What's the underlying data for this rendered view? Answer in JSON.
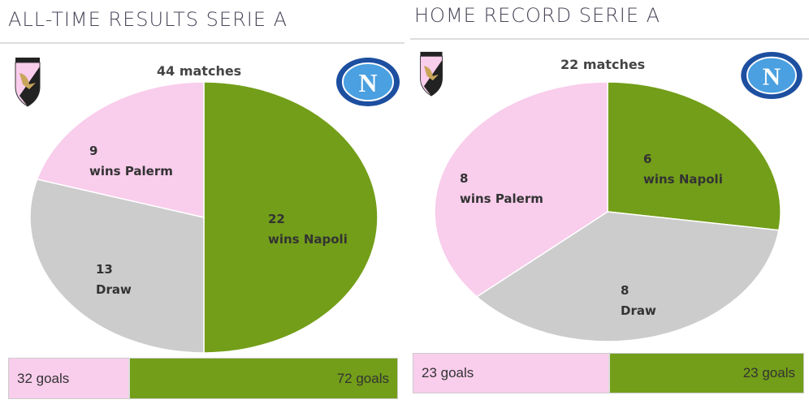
{
  "colors": {
    "palermo": "#f9cdec",
    "napoli": "#739e19",
    "draw": "#cccccc"
  },
  "chart_data": [
    {
      "type": "pie",
      "title": "ALL-TIME RESULTS SERIE A",
      "total_label": "44 matches",
      "slices": [
        {
          "label": "wins Napoli",
          "value": 22
        },
        {
          "label": "Draw",
          "value": 13
        },
        {
          "label": "wins Palerm",
          "value": 9
        }
      ],
      "goals": {
        "palermo": {
          "value": 32,
          "label": "32 goals"
        },
        "napoli": {
          "value": 72,
          "label": "72 goals"
        }
      }
    },
    {
      "type": "pie",
      "title": "HOME RECORD SERIE A",
      "total_label": "22 matches",
      "slices": [
        {
          "label": "wins Napoli",
          "value": 6
        },
        {
          "label": "Draw",
          "value": 8
        },
        {
          "label": "wins Palerm",
          "value": 8
        }
      ],
      "goals": {
        "palermo": {
          "value": 23,
          "label": "23 goals"
        },
        "napoli": {
          "value": 23,
          "label": "23 goals"
        }
      }
    }
  ],
  "logos": {
    "palermo": "palermo-crest",
    "napoli": "napoli-crest",
    "napoli_letter": "N"
  }
}
